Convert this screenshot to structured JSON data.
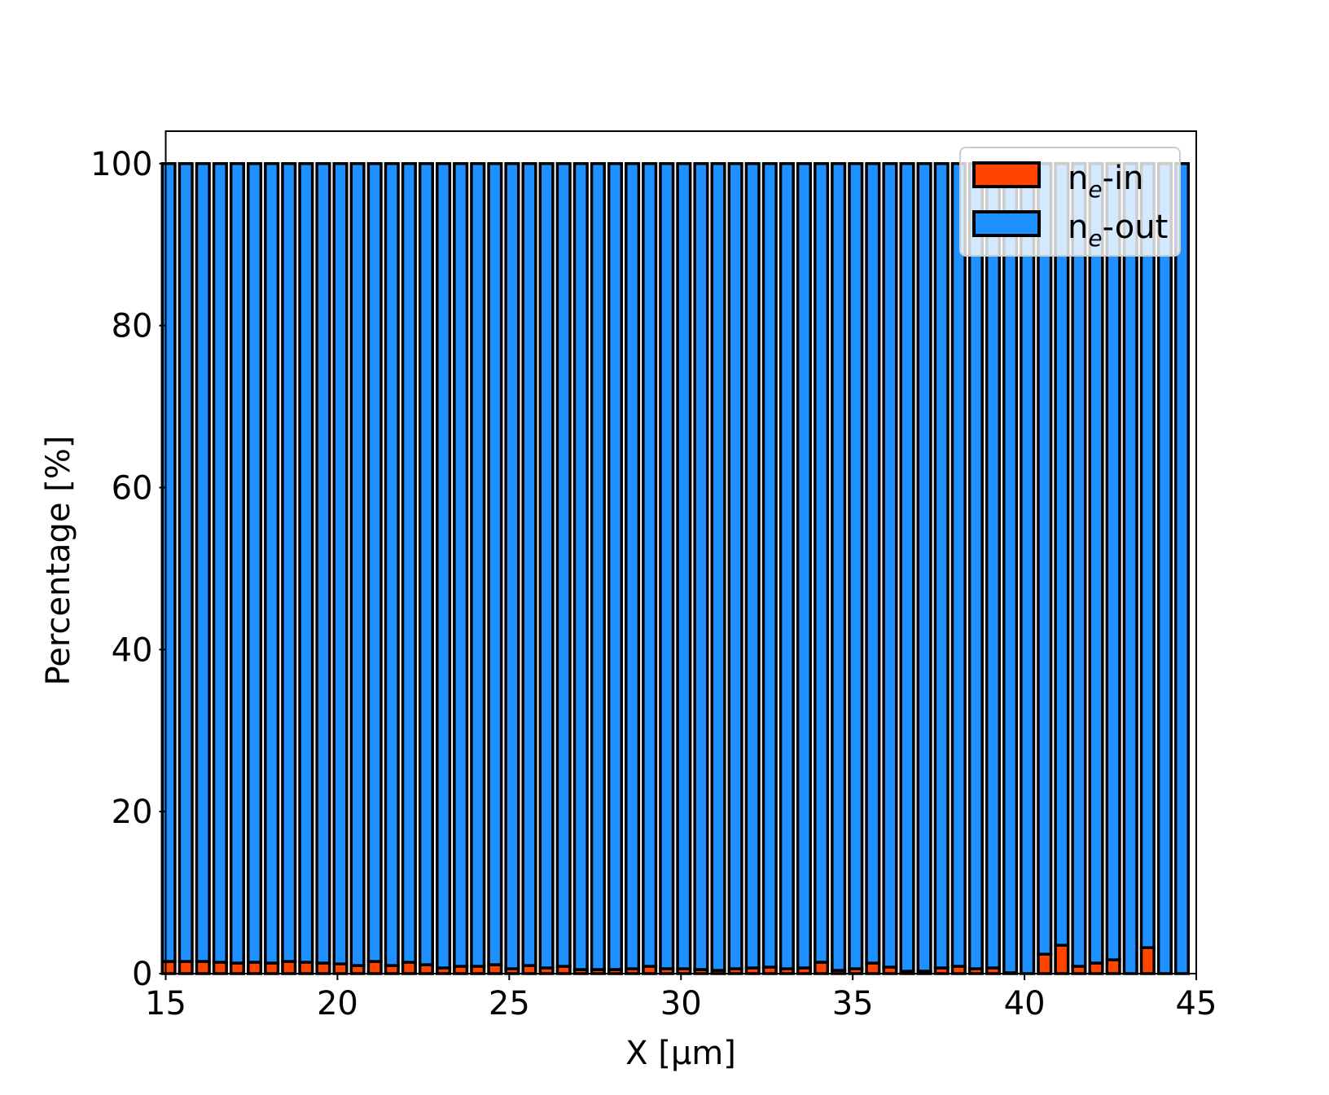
{
  "chart_data": {
    "type": "bar",
    "stacked": true,
    "title": "",
    "xlabel": "X  [μm]",
    "ylabel": "Percentage  [%]",
    "xlim": [
      15,
      45
    ],
    "ylim": [
      0,
      104
    ],
    "xticks": [
      15,
      20,
      25,
      30,
      35,
      40,
      45
    ],
    "yticks": [
      0,
      20,
      40,
      60,
      80,
      100
    ],
    "grid": false,
    "legend_position": "top-right",
    "x": [
      15.0,
      15.5,
      16.0,
      16.5,
      17.0,
      17.5,
      18.0,
      18.5,
      19.0,
      19.5,
      20.0,
      20.5,
      21.0,
      21.5,
      22.0,
      22.5,
      23.0,
      23.5,
      24.0,
      24.5,
      25.0,
      25.5,
      26.0,
      26.5,
      27.0,
      27.5,
      28.0,
      28.5,
      29.0,
      29.5,
      30.0,
      30.5,
      31.0,
      31.5,
      32.0,
      32.5,
      33.0,
      33.5,
      34.0,
      34.5,
      35.0,
      35.5,
      36.0,
      36.5,
      37.0,
      37.5,
      38.0,
      38.5,
      39.0,
      39.5,
      40.0,
      40.5,
      41.0,
      41.5,
      42.0,
      42.5,
      43.0,
      43.5,
      44.0,
      44.5
    ],
    "series": [
      {
        "name": "n_e-in",
        "label_main": "n",
        "label_sub": "e",
        "label_suffix": "-in",
        "color": "#ff4500",
        "values": [
          1.5,
          1.5,
          1.5,
          1.4,
          1.3,
          1.4,
          1.3,
          1.5,
          1.4,
          1.3,
          1.2,
          1.0,
          1.5,
          1.0,
          1.4,
          1.1,
          0.7,
          0.9,
          0.9,
          1.1,
          0.6,
          1.0,
          0.7,
          0.9,
          0.5,
          0.5,
          0.5,
          0.6,
          0.9,
          0.6,
          0.6,
          0.5,
          0.4,
          0.6,
          0.7,
          0.8,
          0.6,
          0.7,
          1.4,
          0.4,
          0.6,
          1.3,
          0.8,
          0.3,
          0.3,
          0.7,
          0.9,
          0.6,
          0.7,
          0.1,
          0.0,
          2.4,
          3.5,
          0.9,
          1.3,
          1.7,
          0.0,
          3.2,
          0.0,
          0.0
        ]
      },
      {
        "name": "n_e-out",
        "label_main": "n",
        "label_sub": "e",
        "label_suffix": "-out",
        "color": "#1e90ff",
        "values": [
          98.5,
          98.5,
          98.5,
          98.6,
          98.7,
          98.6,
          98.7,
          98.5,
          98.6,
          98.7,
          98.8,
          99.0,
          98.5,
          99.0,
          98.6,
          98.9,
          99.3,
          99.1,
          99.1,
          98.9,
          99.4,
          99.0,
          99.3,
          99.1,
          99.5,
          99.5,
          99.5,
          99.4,
          99.1,
          99.4,
          99.4,
          99.5,
          99.6,
          99.4,
          99.3,
          99.2,
          99.4,
          99.3,
          98.6,
          99.6,
          99.4,
          98.7,
          99.2,
          99.7,
          99.7,
          99.3,
          99.1,
          99.4,
          99.3,
          99.9,
          100.0,
          97.6,
          96.5,
          99.1,
          98.7,
          98.3,
          100.0,
          96.8,
          100.0,
          100.0
        ]
      }
    ],
    "edge_color": "#000000"
  }
}
